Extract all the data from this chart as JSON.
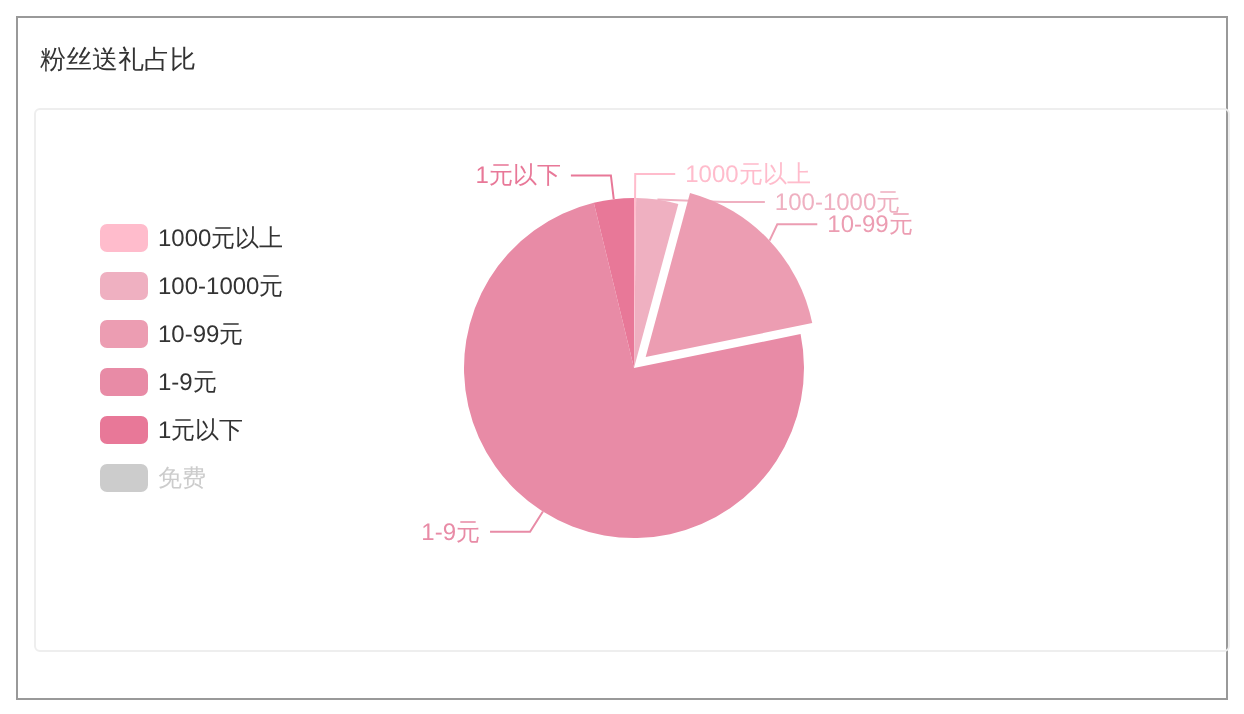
{
  "chart_data": {
    "type": "pie",
    "title": "粉丝送礼占比",
    "categories": [
      "1000元以上",
      "100-1000元",
      "10-99元",
      "1-9元",
      "1元以下",
      "免费"
    ],
    "values": [
      0.2,
      4,
      17.6,
      74.4,
      3.8,
      null
    ],
    "colors": [
      "#ffbccc",
      "#efb0c1",
      "#ec9db2",
      "#e88ba6",
      "#e87898",
      null
    ],
    "legend": "left"
  }
}
